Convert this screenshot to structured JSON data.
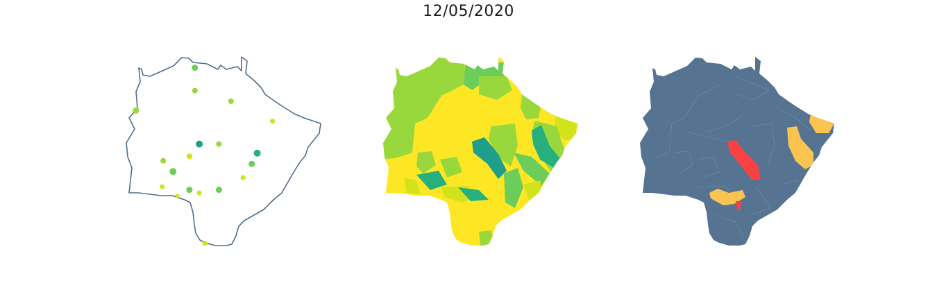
{
  "figure": {
    "title": "12/05/2020"
  },
  "colors": {
    "outline": "#4f6d8a",
    "dark_green": "#1f9e89",
    "teal_green": "#27b07e",
    "mid_green": "#6ccd5a",
    "light_green": "#99d83d",
    "yellow_green": "#d2e21b",
    "yellow": "#fde725",
    "slate": "#567491",
    "orange": "#fac450",
    "red": "#f94144"
  },
  "dots": [
    {
      "id": "d1",
      "lon": 0.64,
      "lat": 0.08,
      "color": "mid_green",
      "size": 4.5
    },
    {
      "id": "d2",
      "lon": 0.64,
      "lat": 0.23,
      "color": "light_green",
      "size": 4
    },
    {
      "id": "d3",
      "lon": 0.97,
      "lat": 0.3,
      "color": "light_green",
      "size": 4
    },
    {
      "id": "d4",
      "lon": 0.1,
      "lat": 0.36,
      "color": "light_green",
      "size": 4.5
    },
    {
      "id": "d5",
      "lon": 1.35,
      "lat": 0.43,
      "color": "yellow_green",
      "size": 3.5
    },
    {
      "id": "d6",
      "lon": 0.68,
      "lat": 0.58,
      "color": "dark_green",
      "size": 5
    },
    {
      "id": "d7",
      "lon": 0.86,
      "lat": 0.58,
      "color": "light_green",
      "size": 4
    },
    {
      "id": "d8",
      "lon": 1.21,
      "lat": 0.64,
      "color": "teal_green",
      "size": 5
    },
    {
      "id": "d9",
      "lon": 0.59,
      "lat": 0.66,
      "color": "yellow_green",
      "size": 4
    },
    {
      "id": "d10",
      "lon": 0.35,
      "lat": 0.69,
      "color": "light_green",
      "size": 4
    },
    {
      "id": "d11",
      "lon": 0.44,
      "lat": 0.76,
      "color": "mid_green",
      "size": 5
    },
    {
      "id": "d12",
      "lon": 1.16,
      "lat": 0.71,
      "color": "mid_green",
      "size": 4.5
    },
    {
      "id": "d13",
      "lon": 1.08,
      "lat": 0.8,
      "color": "yellow_green",
      "size": 3.5
    },
    {
      "id": "d14",
      "lon": 0.34,
      "lat": 0.86,
      "color": "yellow_green",
      "size": 3.5
    },
    {
      "id": "d15",
      "lon": 0.59,
      "lat": 0.88,
      "color": "mid_green",
      "size": 4.5
    },
    {
      "id": "d16",
      "lon": 0.68,
      "lat": 0.9,
      "color": "yellow_green",
      "size": 3.5
    },
    {
      "id": "d17",
      "lon": 0.86,
      "lat": 0.88,
      "color": "mid_green",
      "size": 4.5
    },
    {
      "id": "d18",
      "lon": 0.48,
      "lat": 0.92,
      "color": "yellow_green",
      "size": 3
    },
    {
      "id": "d19",
      "lon": 0.73,
      "lat": 1.23,
      "color": "yellow_green",
      "size": 3.5
    }
  ]
}
